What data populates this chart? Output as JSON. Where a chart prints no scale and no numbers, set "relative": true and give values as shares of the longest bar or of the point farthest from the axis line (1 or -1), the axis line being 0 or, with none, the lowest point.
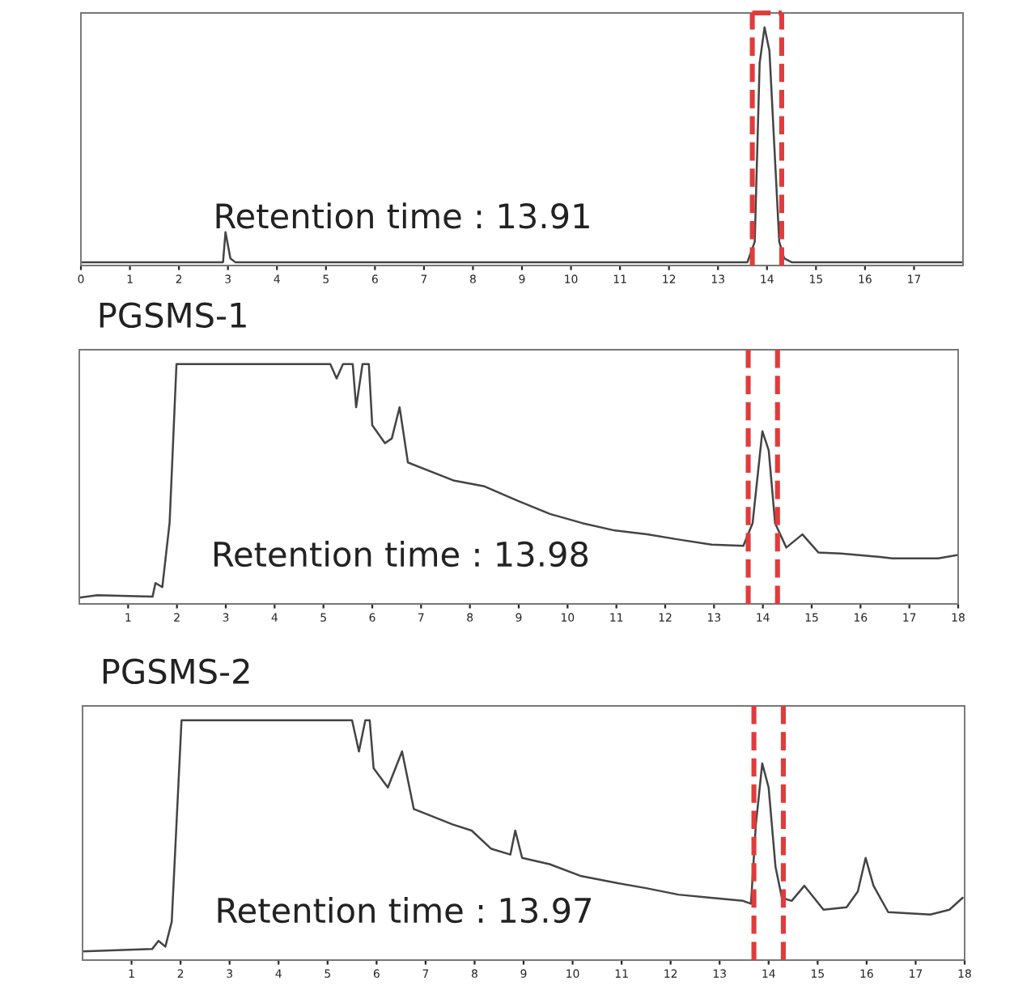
{
  "chart_data": [
    {
      "type": "line",
      "relative": true,
      "xlim": [
        0,
        18
      ],
      "xticks": [
        0,
        1,
        2,
        3,
        4,
        5,
        6,
        7,
        8,
        9,
        10,
        11,
        12,
        13,
        14,
        15,
        16,
        17
      ],
      "annotations": [
        "Retention time : 13.91"
      ],
      "ref_lines": [
        {
          "axis": "x",
          "value": 13.7,
          "color": "#e03c3c",
          "line_style": "dashed"
        },
        {
          "axis": "x",
          "value": 14.3,
          "color": "#e03c3c",
          "line_style": "dashed"
        }
      ],
      "series": [
        {
          "color": "#444444",
          "x": [
            0,
            2.9,
            2.95,
            3.05,
            3.15,
            13.6,
            13.75,
            13.85,
            13.95,
            14.05,
            14.15,
            14.25,
            14.35,
            14.5,
            18
          ],
          "values": [
            0.014,
            0.014,
            0.14,
            0.03,
            0.014,
            0.014,
            0.1,
            0.85,
            1.0,
            0.9,
            0.5,
            0.1,
            0.03,
            0.014,
            0.014
          ]
        }
      ]
    },
    {
      "type": "line",
      "relative": true,
      "title": "PGSMS-1",
      "xlim": [
        0,
        18
      ],
      "xticks": [
        1,
        2,
        3,
        4,
        5,
        6,
        7,
        8,
        9,
        10,
        11,
        12,
        13,
        14,
        15,
        16,
        17,
        18
      ],
      "annotations": [
        "Retention time : 13.98"
      ],
      "ref_lines": [
        {
          "axis": "x",
          "value": 13.7,
          "color": "#e03c3c",
          "line_style": "dashed"
        },
        {
          "axis": "x",
          "value": 14.3,
          "color": "#e03c3c",
          "line_style": "dashed"
        }
      ],
      "series": [
        {
          "color": "#444444",
          "x": [
            0,
            0.37,
            1.5,
            1.56,
            1.7,
            1.85,
            1.99,
            5.14,
            5.27,
            5.4,
            5.6,
            5.67,
            5.8,
            5.93,
            6.0,
            6.26,
            6.4,
            6.56,
            6.73,
            7.66,
            8.3,
            8.98,
            9.64,
            10.3,
            10.97,
            11.63,
            12.29,
            12.95,
            13.6,
            13.79,
            13.99,
            14.12,
            14.25,
            14.48,
            14.81,
            15.14,
            15.6,
            16.4,
            16.65,
            17.59,
            18
          ],
          "values": [
            0.026,
            0.036,
            0.03,
            0.087,
            0.07,
            0.34,
            1.0,
            1.0,
            0.94,
            1.0,
            1.0,
            0.82,
            1.0,
            1.0,
            0.745,
            0.67,
            0.69,
            0.82,
            0.59,
            0.515,
            0.49,
            0.43,
            0.375,
            0.337,
            0.306,
            0.29,
            0.268,
            0.247,
            0.242,
            0.337,
            0.72,
            0.64,
            0.337,
            0.235,
            0.29,
            0.214,
            0.21,
            0.196,
            0.19,
            0.19,
            0.204
          ]
        }
      ]
    },
    {
      "type": "line",
      "relative": true,
      "title": "PGSMS-2",
      "xlim": [
        0,
        18
      ],
      "xticks": [
        1,
        2,
        3,
        4,
        5,
        6,
        7,
        8,
        9,
        10,
        11,
        12,
        13,
        14,
        15,
        16,
        17,
        18
      ],
      "annotations": [
        "Retention time : 13.97"
      ],
      "ref_lines": [
        {
          "axis": "x",
          "value": 13.7,
          "color": "#e03c3c",
          "line_style": "dashed"
        },
        {
          "axis": "x",
          "value": 14.3,
          "color": "#e03c3c",
          "line_style": "dashed"
        }
      ],
      "series": [
        {
          "color": "#444444",
          "x": [
            0,
            1.42,
            1.55,
            1.69,
            1.82,
            2.02,
            5.5,
            5.64,
            5.77,
            5.86,
            5.94,
            6.23,
            6.52,
            6.76,
            7.55,
            7.94,
            8.34,
            8.73,
            8.83,
            8.97,
            9.53,
            10.18,
            10.84,
            11.5,
            12.16,
            12.82,
            13.48,
            13.64,
            13.74,
            13.87,
            14.0,
            14.14,
            14.27,
            14.47,
            14.73,
            15.12,
            15.59,
            15.82,
            15.98,
            16.14,
            16.44,
            17.3,
            17.69,
            17.96
          ],
          "values": [
            0.036,
            0.046,
            0.08,
            0.056,
            0.16,
            1.0,
            1.0,
            0.87,
            1.0,
            1.0,
            0.8,
            0.72,
            0.87,
            0.63,
            0.566,
            0.54,
            0.464,
            0.44,
            0.54,
            0.426,
            0.4,
            0.35,
            0.324,
            0.3,
            0.273,
            0.26,
            0.247,
            0.235,
            0.566,
            0.82,
            0.72,
            0.39,
            0.26,
            0.247,
            0.31,
            0.21,
            0.22,
            0.286,
            0.426,
            0.31,
            0.2,
            0.19,
            0.21,
            0.26
          ]
        }
      ]
    }
  ]
}
